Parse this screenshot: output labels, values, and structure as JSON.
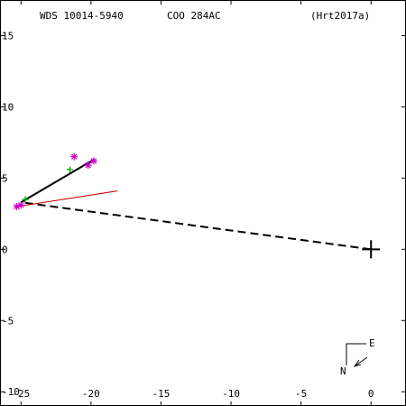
{
  "header": {
    "wds": "WDS 10014-5940",
    "discoverer": "COO 284AC",
    "reference": "(Hrt2017a)"
  },
  "compass": {
    "east": "E",
    "north": "N"
  },
  "chart_data": {
    "type": "scatter",
    "title": "",
    "xlabel": "",
    "ylabel": "",
    "xlim": [
      -26.5,
      2.5
    ],
    "ylim": [
      -11,
      17.5
    ],
    "x_ticks": [
      {
        "value": -25,
        "label": "-25"
      },
      {
        "value": -20,
        "label": "-20"
      },
      {
        "value": -15,
        "label": "-15"
      },
      {
        "value": -10,
        "label": "-10"
      },
      {
        "value": -5,
        "label": "-5"
      },
      {
        "value": 0,
        "label": "0"
      }
    ],
    "y_ticks": [
      {
        "value": 15,
        "label": "15"
      },
      {
        "value": 10,
        "label": "10"
      },
      {
        "value": 5,
        "label": "5"
      },
      {
        "value": 0,
        "label": "0"
      },
      {
        "value": -5,
        "label": "-5"
      },
      {
        "value": -10,
        "label": "-10"
      }
    ],
    "primary": {
      "x": 0,
      "y": 0,
      "color": "#000000"
    },
    "dashed_line": {
      "from": [
        0,
        0
      ],
      "to": [
        -25,
        3.3
      ],
      "color": "#000000"
    },
    "motion_line": {
      "from": [
        -25,
        3.3
      ],
      "to": [
        -19.8,
        6.3
      ],
      "color": "#000000"
    },
    "fit_line": {
      "from": [
        -25.3,
        3.0
      ],
      "to": [
        -18.1,
        4.1
      ],
      "color": "#cc0000"
    },
    "series": [
      {
        "marker": "asterisk",
        "color": "#cc00cc",
        "points": [
          [
            -21.2,
            6.5
          ],
          [
            -20.2,
            5.9
          ],
          [
            -19.8,
            6.2
          ],
          [
            -25.0,
            3.1
          ],
          [
            -25.3,
            3.0
          ]
        ]
      },
      {
        "marker": "plus",
        "color": "#00aa00",
        "points": [
          [
            -21.5,
            5.6
          ],
          [
            -24.7,
            3.5
          ]
        ]
      }
    ]
  }
}
